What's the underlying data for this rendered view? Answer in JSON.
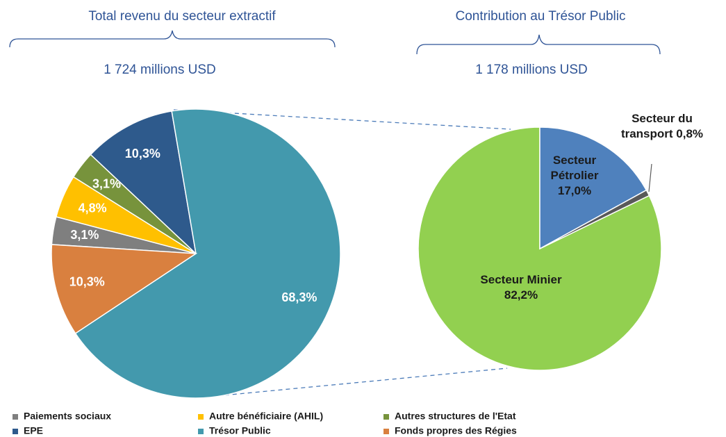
{
  "chart_data": [
    {
      "type": "pie",
      "title": "Total revenu du secteur extractif",
      "subtitle": "1 724 millions USD",
      "categories": [
        "Paiements sociaux",
        "Autre bénéficiaire (AHIL)",
        "Autres structures de l'Etat",
        "EPE",
        "Trésor Public",
        "Fonds propres des Régies"
      ],
      "values": [
        3.1,
        4.8,
        3.1,
        10.3,
        68.3,
        10.3
      ],
      "value_labels": [
        "3,1%",
        "4,8%",
        "3,1%",
        "10,3%",
        "68,3%",
        "10,3%"
      ],
      "colors": [
        "#7f7f7f",
        "#ffc000",
        "#77933c",
        "#2e5a8c",
        "#4399ad",
        "#d9803f"
      ],
      "legend": "bottom"
    },
    {
      "type": "pie",
      "title": "Contribution au Trésor Public",
      "subtitle": "1 178 millions USD",
      "categories": [
        "Secteur Minier",
        "Secteur Pétrolier",
        "Secteur du transport"
      ],
      "values": [
        82.2,
        17.0,
        0.8
      ],
      "value_labels": [
        "82,2%",
        "17,0%",
        "0,8%"
      ],
      "colors": [
        "#92d050",
        "#4f81bd",
        "#595959"
      ]
    }
  ]
}
